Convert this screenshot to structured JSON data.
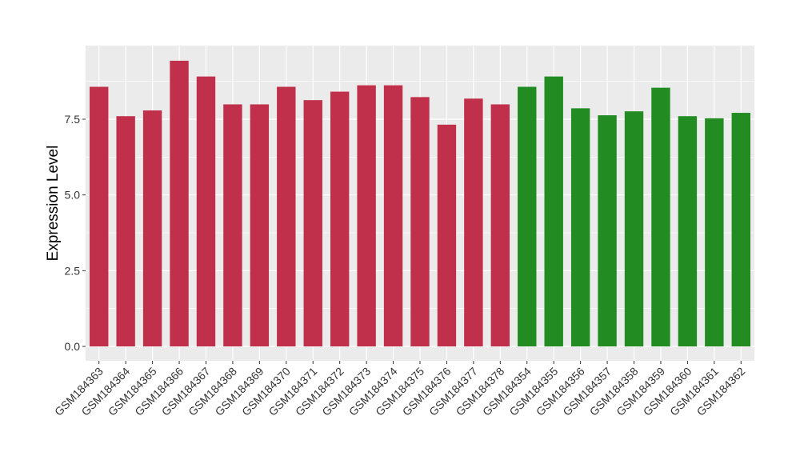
{
  "chart_data": {
    "type": "bar",
    "title": "",
    "xlabel": "",
    "ylabel": "Expression Level",
    "ylim": [
      -0.475,
      9.93
    ],
    "yticks": [
      0.0,
      2.5,
      5.0,
      7.5
    ],
    "ytick_labels": [
      "0.0",
      "2.5",
      "5.0",
      "7.5"
    ],
    "grid": true,
    "legend": "none",
    "categories": [
      "GSM184363",
      "GSM184364",
      "GSM184365",
      "GSM184366",
      "GSM184367",
      "GSM184368",
      "GSM184369",
      "GSM184370",
      "GSM184371",
      "GSM184372",
      "GSM184373",
      "GSM184374",
      "GSM184375",
      "GSM184376",
      "GSM184377",
      "GSM184378",
      "GSM184354",
      "GSM184355",
      "GSM184356",
      "GSM184357",
      "GSM184358",
      "GSM184359",
      "GSM184360",
      "GSM184361",
      "GSM184362"
    ],
    "values": [
      8.57,
      7.6,
      7.79,
      9.43,
      8.91,
      7.99,
      7.99,
      8.57,
      8.13,
      8.41,
      8.62,
      8.62,
      8.23,
      7.32,
      8.18,
      7.99,
      8.57,
      8.91,
      7.86,
      7.63,
      7.76,
      8.54,
      7.6,
      7.53,
      7.71
    ],
    "groups": [
      "a",
      "a",
      "a",
      "a",
      "a",
      "a",
      "a",
      "a",
      "a",
      "a",
      "a",
      "a",
      "a",
      "a",
      "a",
      "a",
      "b",
      "b",
      "b",
      "b",
      "b",
      "b",
      "b",
      "b",
      "b"
    ],
    "colors": {
      "a": "#C1304A",
      "b": "#228B22"
    }
  }
}
